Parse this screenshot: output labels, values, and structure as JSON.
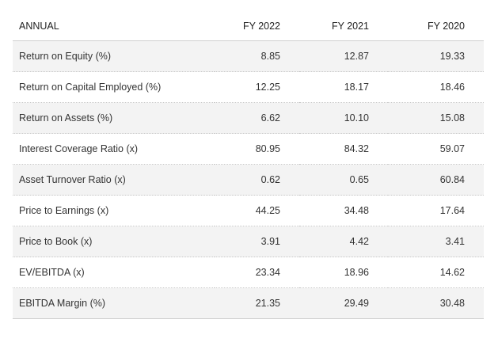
{
  "table": {
    "headers": [
      "ANNUAL",
      "FY 2022",
      "FY 2021",
      "FY 2020"
    ],
    "rows": [
      {
        "label": "Return on Equity (%)",
        "values": [
          "8.85",
          "12.87",
          "19.33"
        ]
      },
      {
        "label": "Return on Capital Employed (%)",
        "values": [
          "12.25",
          "18.17",
          "18.46"
        ]
      },
      {
        "label": "Return on Assets (%)",
        "values": [
          "6.62",
          "10.10",
          "15.08"
        ]
      },
      {
        "label": "Interest Coverage Ratio (x)",
        "values": [
          "80.95",
          "84.32",
          "59.07"
        ]
      },
      {
        "label": "Asset Turnover Ratio (x)",
        "values": [
          "0.62",
          "0.65",
          "60.84"
        ]
      },
      {
        "label": "Price to Earnings (x)",
        "values": [
          "44.25",
          "34.48",
          "17.64"
        ]
      },
      {
        "label": "Price to Book (x)",
        "values": [
          "3.91",
          "4.42",
          "3.41"
        ]
      },
      {
        "label": "EV/EBITDA (x)",
        "values": [
          "23.34",
          "18.96",
          "14.62"
        ]
      },
      {
        "label": "EBITDA Margin (%)",
        "values": [
          "21.35",
          "29.49",
          "30.48"
        ]
      }
    ]
  }
}
